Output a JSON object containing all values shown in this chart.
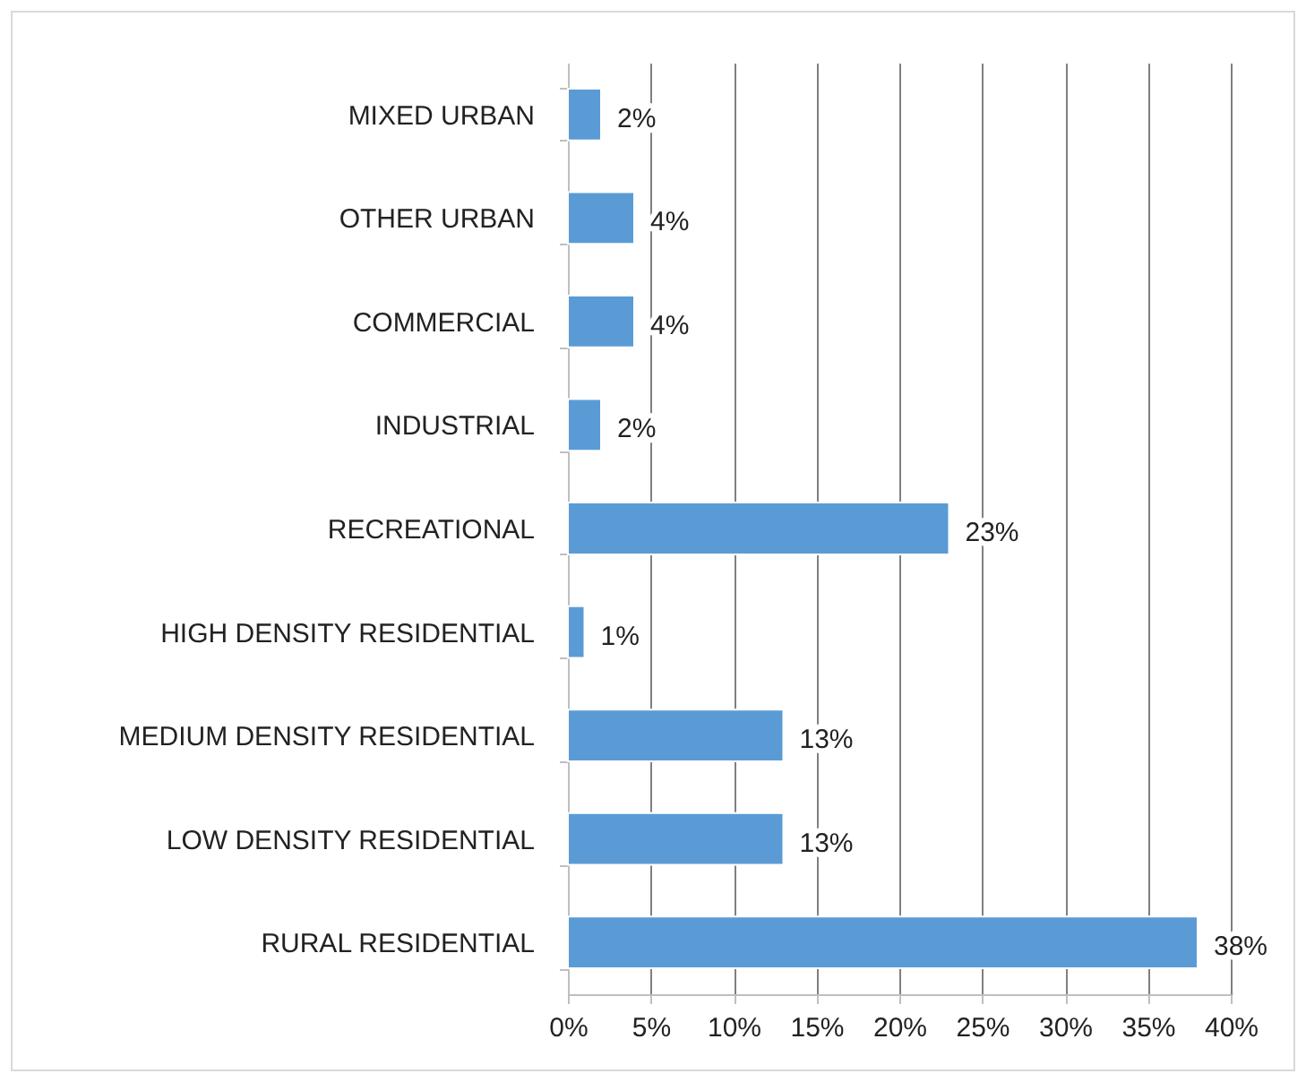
{
  "chart_data": {
    "type": "bar",
    "orientation": "horizontal",
    "categories": [
      "MIXED URBAN",
      "OTHER URBAN",
      "COMMERCIAL",
      "INDUSTRIAL",
      "RECREATIONAL",
      "HIGH DENSITY RESIDENTIAL",
      "MEDIUM DENSITY RESIDENTIAL",
      "LOW DENSITY RESIDENTIAL",
      "RURAL RESIDENTIAL"
    ],
    "values": [
      2,
      4,
      4,
      2,
      23,
      1,
      13,
      13,
      38
    ],
    "value_labels": [
      "2%",
      "4%",
      "4%",
      "2%",
      "23%",
      "1%",
      "13%",
      "13%",
      "38%"
    ],
    "color": "#5b9bd5",
    "xlim": [
      0,
      40
    ],
    "xticks": [
      {
        "value": 0,
        "label": "0%"
      },
      {
        "value": 5,
        "label": "5%"
      },
      {
        "value": 10,
        "label": "10%"
      },
      {
        "value": 15,
        "label": "15%"
      },
      {
        "value": 20,
        "label": "20%"
      },
      {
        "value": 25,
        "label": "25%"
      },
      {
        "value": 30,
        "label": "30%"
      },
      {
        "value": 35,
        "label": "35%"
      },
      {
        "value": 40,
        "label": "40%"
      }
    ],
    "grid": "x"
  }
}
